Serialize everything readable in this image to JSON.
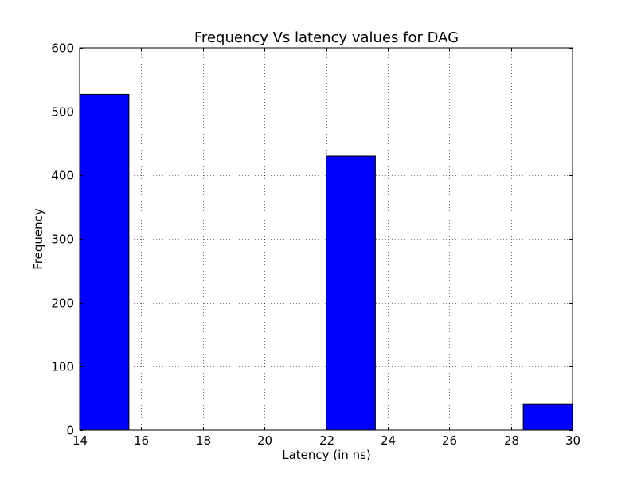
{
  "chart_data": {
    "type": "bar",
    "title": "Frequency Vs latency values for DAG",
    "xlabel": "Latency (in ns)",
    "ylabel": "Frequency",
    "xlim": [
      14,
      30
    ],
    "ylim": [
      0,
      600
    ],
    "x_ticks": [
      "14",
      "16",
      "18",
      "20",
      "22",
      "24",
      "26",
      "28",
      "30"
    ],
    "y_ticks": [
      "0",
      "100",
      "200",
      "300",
      "400",
      "500",
      "600"
    ],
    "bins": [
      {
        "start": 14.0,
        "end": 15.6,
        "value": 527
      },
      {
        "start": 15.6,
        "end": 17.2,
        "value": 0
      },
      {
        "start": 17.2,
        "end": 18.8,
        "value": 0
      },
      {
        "start": 18.8,
        "end": 20.4,
        "value": 0
      },
      {
        "start": 20.4,
        "end": 22.0,
        "value": 0
      },
      {
        "start": 22.0,
        "end": 23.6,
        "value": 430
      },
      {
        "start": 23.6,
        "end": 25.2,
        "value": 0
      },
      {
        "start": 25.2,
        "end": 26.8,
        "value": 0
      },
      {
        "start": 26.8,
        "end": 28.4,
        "value": 0
      },
      {
        "start": 28.4,
        "end": 30.0,
        "value": 41
      }
    ],
    "bar_color": "#0000ff",
    "edge_color": "#000000",
    "grid": true
  }
}
